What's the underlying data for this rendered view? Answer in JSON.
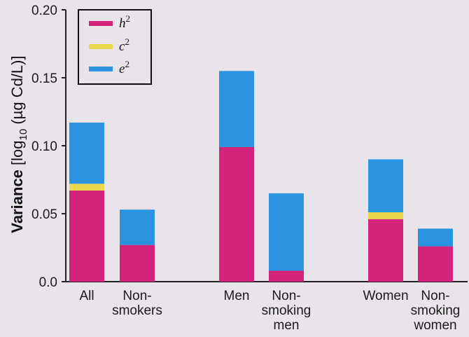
{
  "chart_data": {
    "type": "bar",
    "stacked": true,
    "ylabel_bold": "Variance",
    "ylabel_rest": "[log",
    "ylabel_sub": "10",
    "ylabel_tail": "(µg Cd/L)]",
    "ylim": [
      0,
      0.2
    ],
    "yticks": [
      "0.0",
      "0.05",
      "0.10",
      "0.15",
      "0.20"
    ],
    "categories": [
      [
        "All"
      ],
      [
        "Non-",
        "smokers"
      ],
      [
        "Men"
      ],
      [
        "Non-",
        "smoking",
        "men"
      ],
      [
        "Women"
      ],
      [
        "Non-",
        "smoking",
        "women"
      ]
    ],
    "series": [
      {
        "name": "h",
        "sup": "2",
        "color": "#d4237a",
        "values": [
          0.067,
          0.027,
          0.099,
          0.008,
          0.046,
          0.026
        ]
      },
      {
        "name": "c",
        "sup": "2",
        "color": "#e8d84a",
        "values": [
          0.005,
          0.0,
          0.0,
          0.0,
          0.005,
          0.0
        ]
      },
      {
        "name": "e",
        "sup": "2",
        "color": "#2a94e0",
        "values": [
          0.045,
          0.026,
          0.056,
          0.057,
          0.039,
          0.013
        ]
      }
    ],
    "legend_position": "top-left",
    "grid": false
  }
}
